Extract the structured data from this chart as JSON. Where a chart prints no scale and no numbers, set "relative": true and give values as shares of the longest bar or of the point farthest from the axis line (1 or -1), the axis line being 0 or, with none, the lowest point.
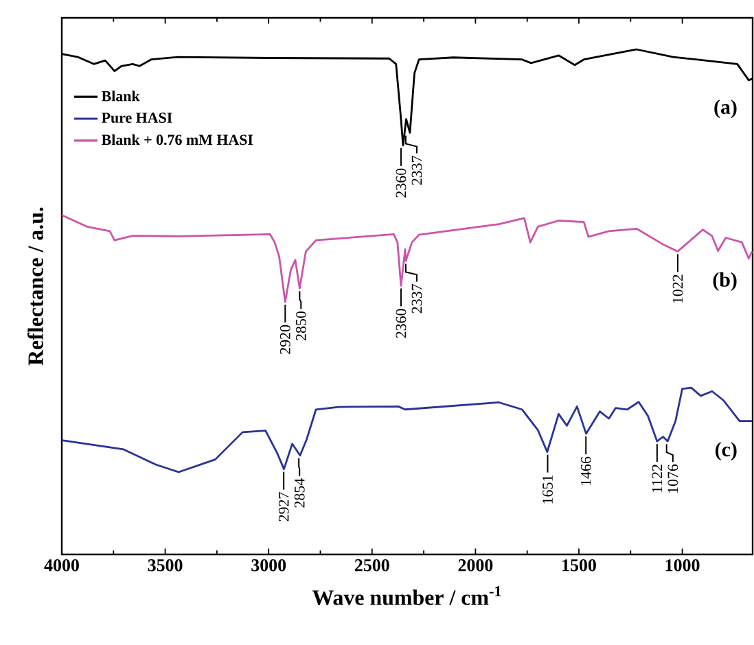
{
  "chart_data": {
    "type": "line",
    "relative": true,
    "xlabel": "Wave number / cm$^{-1}$",
    "ylabel": "Reflectance / a.u.",
    "xlim": [
      4000,
      660
    ],
    "xticks": [
      4000,
      3500,
      3000,
      2500,
      2000,
      1500,
      1000
    ],
    "legend": "top left",
    "line_style": "solid",
    "series": [
      {
        "name": "Blank",
        "color": "#000000",
        "x": [
          4000,
          3923,
          3845,
          3790,
          3745,
          3712,
          3657,
          3624,
          3568,
          3435,
          2993,
          2417,
          2384,
          2362,
          2350,
          2335,
          2317,
          2295,
          2273,
          2107,
          1775,
          1731,
          1598,
          1520,
          1476,
          1221,
          1044,
          889,
          734,
          679,
          662
        ],
        "values": [
          0.991,
          0.985,
          0.971,
          0.978,
          0.957,
          0.967,
          0.971,
          0.967,
          0.98,
          0.985,
          0.983,
          0.982,
          0.971,
          0.871,
          0.81,
          0.862,
          0.835,
          0.953,
          0.98,
          0.984,
          0.98,
          0.973,
          0.988,
          0.969,
          0.98,
          1.0,
          0.985,
          0.978,
          0.971,
          0.939,
          0.942
        ]
      },
      {
        "name": "Pure HASI",
        "color": "#28339a",
        "x": [
          4000,
          3701,
          3546,
          3435,
          3258,
          3126,
          3015,
          2959,
          2926,
          2886,
          2848,
          2816,
          2771,
          2661,
          2373,
          2340,
          1886,
          1775,
          1698,
          1653,
          1598,
          1558,
          1509,
          1465,
          1399,
          1355,
          1322,
          1266,
          1211,
          1166,
          1122,
          1093,
          1071,
          1033,
          1000,
          956,
          911,
          856,
          801,
          723,
          662
        ],
        "values": [
          0.226,
          0.208,
          0.178,
          0.163,
          0.188,
          0.242,
          0.245,
          0.201,
          0.169,
          0.219,
          0.196,
          0.228,
          0.287,
          0.292,
          0.293,
          0.287,
          0.301,
          0.287,
          0.246,
          0.203,
          0.278,
          0.255,
          0.293,
          0.239,
          0.283,
          0.269,
          0.29,
          0.287,
          0.302,
          0.274,
          0.224,
          0.233,
          0.224,
          0.264,
          0.328,
          0.33,
          0.314,
          0.323,
          0.305,
          0.264,
          0.264
        ]
      },
      {
        "name": "Blank + 0.76 mM HASI",
        "color": "#cc55a8",
        "x": [
          4000,
          3878,
          3768,
          3745,
          3657,
          3435,
          2993,
          2971,
          2949,
          2920,
          2893,
          2871,
          2850,
          2820,
          2771,
          2395,
          2377,
          2360,
          2340,
          2337,
          2307,
          2273,
          1886,
          1764,
          1735,
          1698,
          1598,
          1476,
          1454,
          1355,
          1221,
          1089,
          1022,
          901,
          857,
          827,
          790,
          712,
          679,
          662
        ],
        "values": [
          0.672,
          0.649,
          0.64,
          0.622,
          0.631,
          0.63,
          0.634,
          0.618,
          0.59,
          0.5,
          0.563,
          0.583,
          0.527,
          0.6,
          0.622,
          0.634,
          0.618,
          0.532,
          0.604,
          0.581,
          0.618,
          0.633,
          0.654,
          0.666,
          0.618,
          0.649,
          0.661,
          0.658,
          0.629,
          0.64,
          0.645,
          0.613,
          0.6,
          0.643,
          0.631,
          0.601,
          0.627,
          0.618,
          0.586,
          0.6
        ]
      }
    ],
    "annotations": [
      "(a)",
      "(b)",
      "(c)",
      {
        "text": "2360",
        "x": 2360,
        "y": 0.81
      },
      {
        "text": "2337",
        "x": 2337,
        "y": 0.835
      },
      {
        "text": "2920",
        "x": 2920,
        "y": 0.5
      },
      {
        "text": "2850",
        "x": 2850,
        "y": 0.527
      },
      {
        "text": "2360",
        "x": 2360,
        "y": 0.532
      },
      {
        "text": "2337",
        "x": 2337,
        "y": 0.581
      },
      {
        "text": "1022",
        "x": 1022,
        "y": 0.6
      },
      {
        "text": "2927",
        "x": 2927,
        "y": 0.169
      },
      {
        "text": "2854",
        "x": 2854,
        "y": 0.196
      },
      {
        "text": "1651",
        "x": 1651,
        "y": 0.203
      },
      {
        "text": "1466",
        "x": 1466,
        "y": 0.239
      },
      {
        "text": "1122",
        "x": 1122,
        "y": 0.224
      },
      {
        "text": "1076",
        "x": 1076,
        "y": 0.224
      }
    ]
  }
}
